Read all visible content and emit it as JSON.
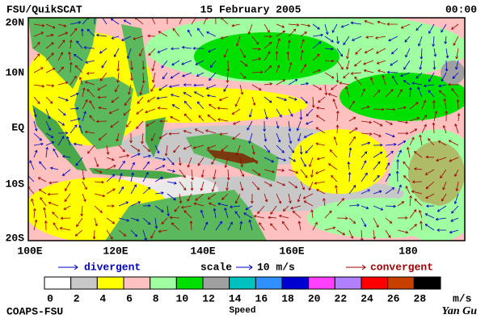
{
  "header": {
    "left": "FSU/QuikSCAT",
    "date": "15 February 2005",
    "time": "00:00"
  },
  "map": {
    "lat_labels": [
      "20N",
      "10N",
      "EQ",
      "10S",
      "20S"
    ],
    "lon_labels": [
      "100E",
      "120E",
      "140E",
      "160E",
      "180"
    ]
  },
  "legend": {
    "divergent": "divergent",
    "scale": "scale",
    "scale_value": "10 m/s",
    "convergent": "convergent"
  },
  "colorbar": {
    "title": "Speed",
    "unit": "m/s",
    "labels": [
      0,
      2,
      4,
      6,
      8,
      10,
      12,
      14,
      16,
      18,
      20,
      22,
      24,
      26,
      28
    ],
    "colors": [
      "#ffffff",
      "#c8c8c8",
      "#ffff00",
      "#ffc0c0",
      "#a0ffa0",
      "#00e000",
      "#a0a0a0",
      "#00c0c0",
      "#3090ff",
      "#0000d0",
      "#ff40ff",
      "#b080ff",
      "#ff0000",
      "#c84000",
      "#000000"
    ]
  },
  "footer": {
    "left": "COAPS-FSU",
    "right": "Yan Gu"
  }
}
